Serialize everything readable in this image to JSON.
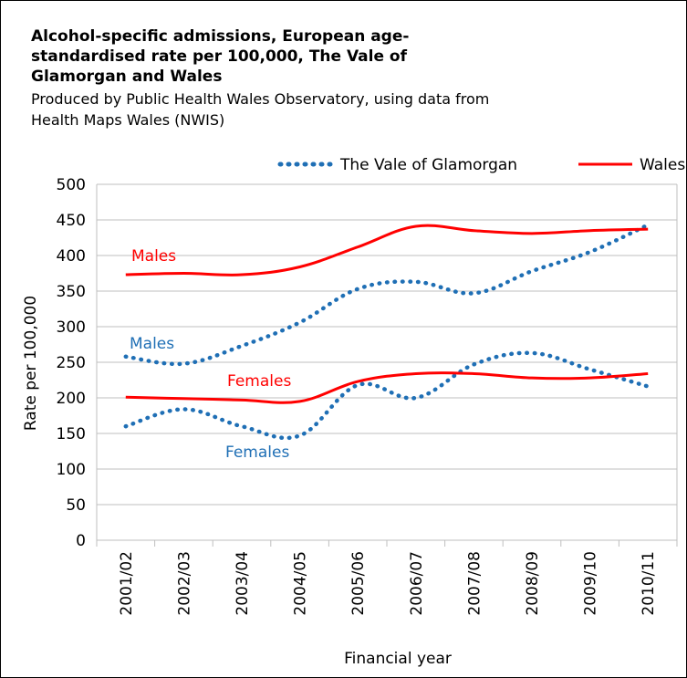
{
  "chart_data": {
    "type": "line",
    "title_lines": [
      "Alcohol-specific admissions, European age-",
      "standardised rate per 100,000, The Vale of",
      "Glamorgan and Wales"
    ],
    "subtitle_lines": [
      "Produced by Public Health Wales Observatory, using data from",
      "Health Maps Wales (NWIS)"
    ],
    "xlabel": "Financial year",
    "ylabel": "Rate per 100,000",
    "ylim": [
      0,
      500
    ],
    "yticks": [
      0,
      50,
      100,
      150,
      200,
      250,
      300,
      350,
      400,
      450,
      500
    ],
    "grid": true,
    "legend_position": "top-right",
    "categories": [
      "2001/02",
      "2002/03",
      "2003/04",
      "2004/05",
      "2005/06",
      "2006/07",
      "2007/08",
      "2008/09",
      "2009/10",
      "2010/11"
    ],
    "legend": [
      {
        "label": "The Vale of Glamorgan",
        "color": "#1f6fb5",
        "style": "dotted"
      },
      {
        "label": "Wales",
        "color": "#ff0000",
        "style": "solid"
      }
    ],
    "series": [
      {
        "area": "The Vale of Glamorgan",
        "group": "Males",
        "color": "#1f6fb5",
        "style": "dotted",
        "values": [
          258,
          248,
          273,
          306,
          353,
          363,
          347,
          378,
          405,
          443
        ]
      },
      {
        "area": "The Vale of Glamorgan",
        "group": "Females",
        "color": "#1f6fb5",
        "style": "dotted",
        "values": [
          160,
          184,
          160,
          147,
          218,
          200,
          247,
          263,
          240,
          216
        ]
      },
      {
        "area": "Wales",
        "group": "Males",
        "color": "#ff0000",
        "style": "solid",
        "values": [
          373,
          375,
          373,
          384,
          412,
          441,
          435,
          431,
          435,
          437
        ]
      },
      {
        "area": "Wales",
        "group": "Females",
        "color": "#ff0000",
        "style": "solid",
        "values": [
          201,
          199,
          197,
          195,
          223,
          234,
          234,
          228,
          228,
          234
        ]
      }
    ],
    "annotations": [
      {
        "text": "Males",
        "color": "#ff0000"
      },
      {
        "text": "Males",
        "color": "#1f6fb5"
      },
      {
        "text": "Females",
        "color": "#ff0000"
      },
      {
        "text": "Females",
        "color": "#1f6fb5"
      }
    ]
  }
}
